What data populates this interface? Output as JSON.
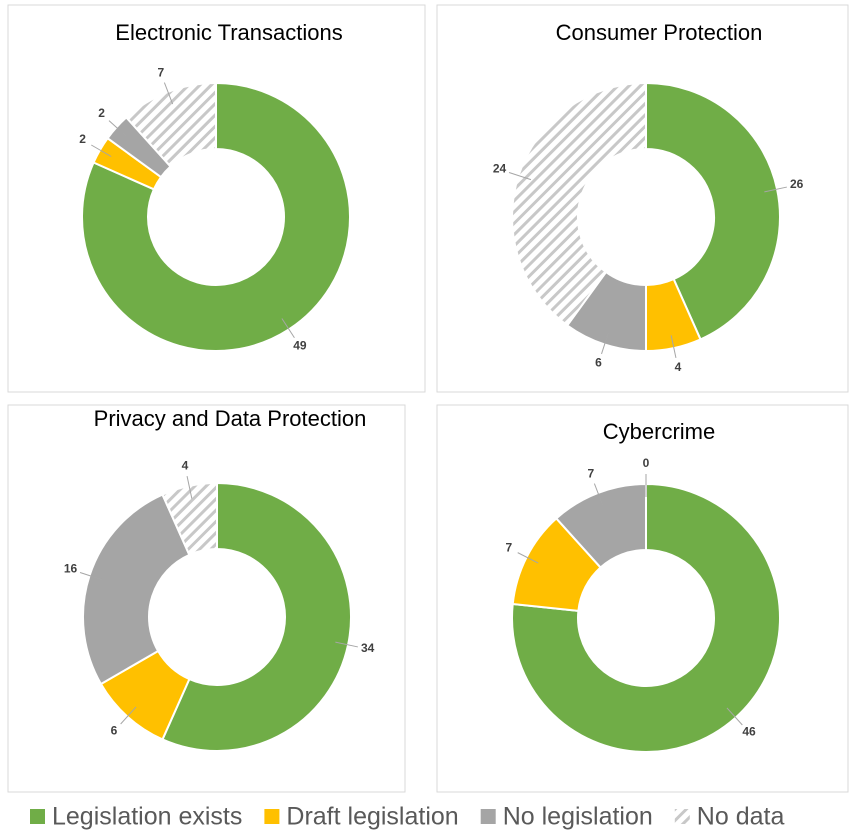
{
  "legend": {
    "labels": [
      "Legislation exists",
      "Draft legislation",
      "No legislation",
      "No data"
    ],
    "colors": [
      "#70ad47",
      "#ffc000",
      "#a5a5a5",
      "#bfbfbf"
    ],
    "hatch": [
      false,
      false,
      false,
      true
    ]
  },
  "chart_data": [
    {
      "type": "pie",
      "title": "Electronic Transactions",
      "values": [
        49,
        2,
        2,
        7
      ]
    },
    {
      "type": "pie",
      "title": "Consumer Protection",
      "values": [
        26,
        4,
        6,
        24
      ]
    },
    {
      "type": "pie",
      "title": "Privacy and Data Protection",
      "values": [
        34,
        6,
        16,
        4
      ]
    },
    {
      "type": "pie",
      "title": "Cybercrime",
      "values": [
        46,
        7,
        7,
        0
      ]
    }
  ]
}
